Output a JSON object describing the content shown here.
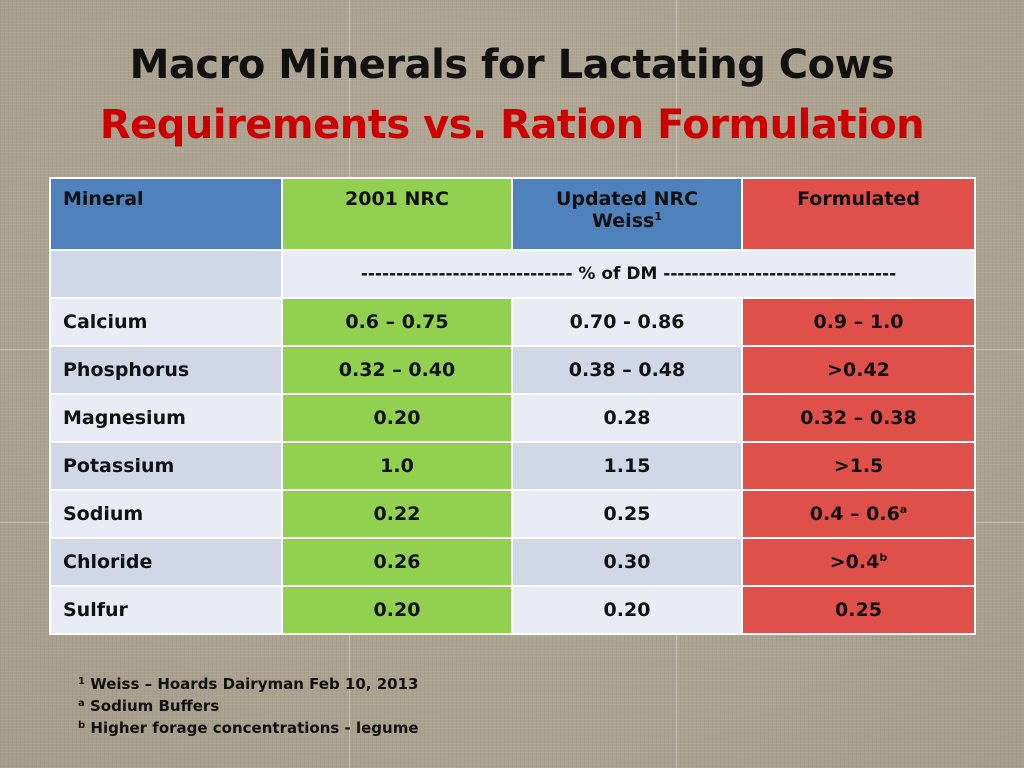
{
  "title_line1": "Macro Minerals for Lactating Cows",
  "title_line2": "Requirements vs. Ration Formulation",
  "colors": {
    "header_mineral": "#4f81bd",
    "header_nrc2001": "#92d050",
    "header_updated": "#4f81bd",
    "header_formulated": "#e0504b",
    "title_red": "#cc0000"
  },
  "table": {
    "headers": {
      "mineral": "Mineral",
      "nrc2001": "2001 NRC",
      "updated_line1": "Updated NRC",
      "updated_line2": "Weiss",
      "updated_sup": "1",
      "formulated": "Formulated"
    },
    "units": "------------------------------ % of DM ---------------------------------",
    "rows": [
      {
        "mineral": "Calcium",
        "nrc2001": "0.6 – 0.75",
        "updated": "0.70 - 0.86",
        "formulated": "0.9 – 1.0",
        "sup": ""
      },
      {
        "mineral": "Phosphorus",
        "nrc2001": "0.32 – 0.40",
        "updated": "0.38 – 0.48",
        "formulated": ">0.42",
        "sup": ""
      },
      {
        "mineral": "Magnesium",
        "nrc2001": "0.20",
        "updated": "0.28",
        "formulated": "0.32 – 0.38",
        "sup": ""
      },
      {
        "mineral": "Potassium",
        "nrc2001": "1.0",
        "updated": "1.15",
        "formulated": ">1.5",
        "sup": ""
      },
      {
        "mineral": "Sodium",
        "nrc2001": "0.22",
        "updated": "0.25",
        "formulated": "0.4 – 0.6",
        "sup": "a"
      },
      {
        "mineral": "Chloride",
        "nrc2001": "0.26",
        "updated": "0.30",
        "formulated": ">0.4",
        "sup": "b"
      },
      {
        "mineral": "Sulfur",
        "nrc2001": "0.20",
        "updated": "0.20",
        "formulated": "0.25",
        "sup": ""
      }
    ]
  },
  "footnotes": [
    {
      "mark": "1",
      "text": "Weiss – Hoards Dairyman Feb 10, 2013"
    },
    {
      "mark": "a",
      "text": "Sodium Buffers"
    },
    {
      "mark": "b",
      "text": "Higher forage concentrations - legume"
    }
  ]
}
